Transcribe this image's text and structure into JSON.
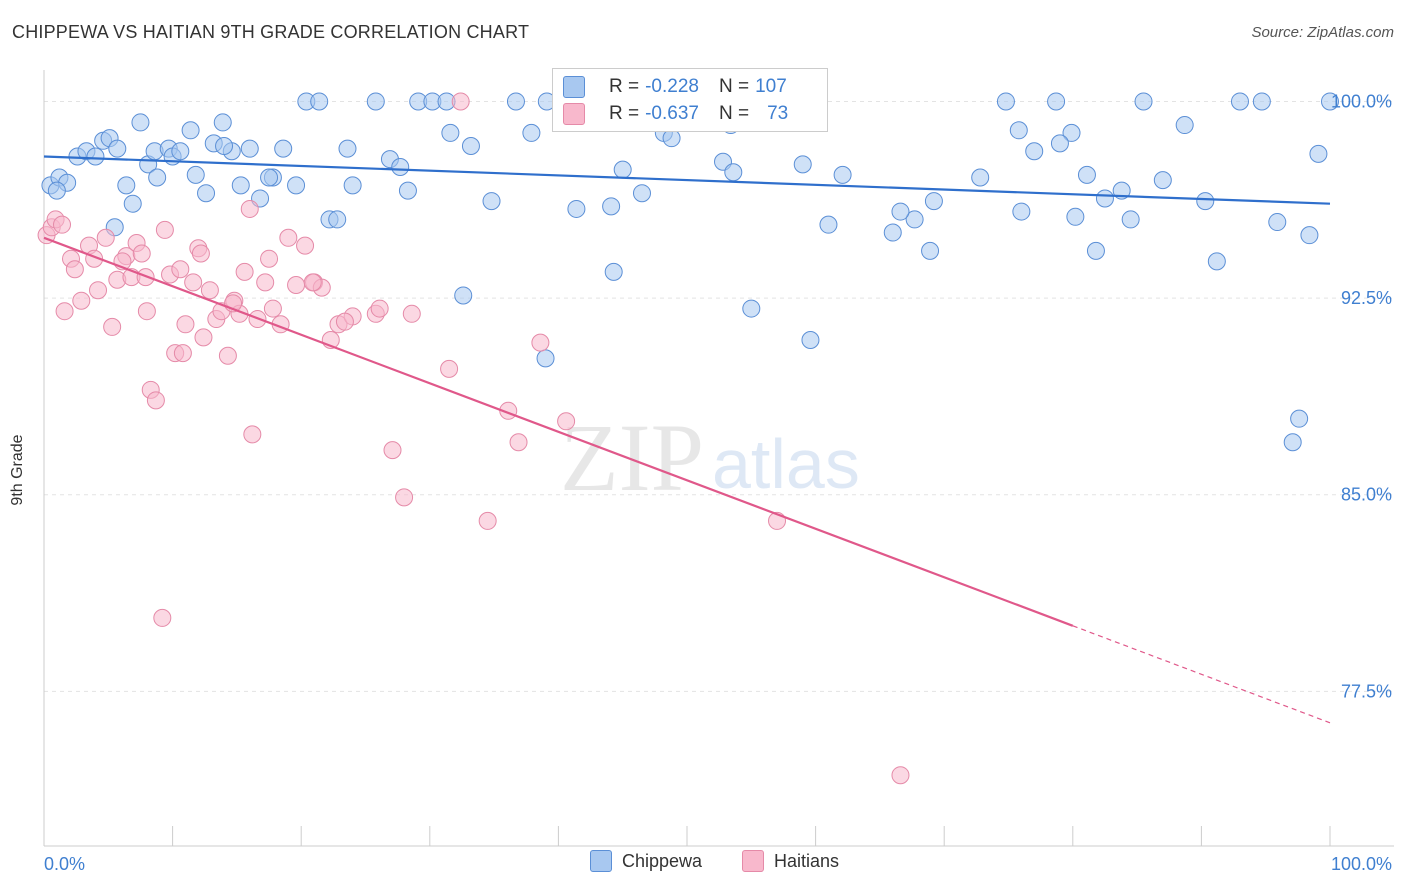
{
  "title": "CHIPPEWA VS HAITIAN 9TH GRADE CORRELATION CHART",
  "source": "Source: ZipAtlas.com",
  "watermark": {
    "zip": "ZIP",
    "atlas": "atlas"
  },
  "legend_stats": [
    {
      "r_label": "R = ",
      "r_value": "-0.228",
      "n_label": "N = ",
      "n_value": "107",
      "color": "#a8c8f0",
      "border": "#5b8fd6"
    },
    {
      "r_label": "R = ",
      "r_value": "-0.637",
      "n_label": "N = ",
      "n_value": "73",
      "color": "#f8b8cc",
      "border": "#e58aa8"
    }
  ],
  "legend_bottom": [
    {
      "label": "Chippewa",
      "color": "#a8c8f0",
      "border": "#5b8fd6"
    },
    {
      "label": "Haitians",
      "color": "#f8b8cc",
      "border": "#e58aa8"
    }
  ],
  "chart_data": {
    "type": "scatter",
    "title": "CHIPPEWA VS HAITIAN 9TH GRADE CORRELATION CHART",
    "xlabel": "",
    "ylabel": "9th Grade",
    "xlim": [
      0,
      100
    ],
    "ylim": [
      71.6,
      101.2
    ],
    "x_tick_labels": [
      "0.0%",
      "100.0%"
    ],
    "y_ticks": [
      100.0,
      92.5,
      85.0,
      77.5
    ],
    "y_tick_labels": [
      "100.0%",
      "92.5%",
      "85.0%",
      "77.5%"
    ],
    "grid": true,
    "series": [
      {
        "name": "Chippewa",
        "color": "#a8c8f0",
        "stroke": "#5b8fd6",
        "trend": {
          "x0": 0,
          "y0": 97.9,
          "x1": 100,
          "y1": 96.1,
          "color": "#2f6fcc"
        },
        "points": [
          [
            0.5,
            96.8
          ],
          [
            1.2,
            97.1
          ],
          [
            1.8,
            96.9
          ],
          [
            2.6,
            97.9
          ],
          [
            3.3,
            98.1
          ],
          [
            4.0,
            97.9
          ],
          [
            4.6,
            98.5
          ],
          [
            5.1,
            98.6
          ],
          [
            5.7,
            98.2
          ],
          [
            6.4,
            96.8
          ],
          [
            6.9,
            96.1
          ],
          [
            7.5,
            99.2
          ],
          [
            8.1,
            97.6
          ],
          [
            8.6,
            98.1
          ],
          [
            8.8,
            97.1
          ],
          [
            9.7,
            98.2
          ],
          [
            10.0,
            97.9
          ],
          [
            10.6,
            98.1
          ],
          [
            11.4,
            98.9
          ],
          [
            11.8,
            97.2
          ],
          [
            12.6,
            96.5
          ],
          [
            13.2,
            98.4
          ],
          [
            13.9,
            99.2
          ],
          [
            14.6,
            98.1
          ],
          [
            15.3,
            96.8
          ],
          [
            16.0,
            98.2
          ],
          [
            16.8,
            96.3
          ],
          [
            17.8,
            97.1
          ],
          [
            18.6,
            98.2
          ],
          [
            19.6,
            96.8
          ],
          [
            20.4,
            100.0
          ],
          [
            21.4,
            100.0
          ],
          [
            22.2,
            95.5
          ],
          [
            22.8,
            95.5
          ],
          [
            23.6,
            98.2
          ],
          [
            24.0,
            96.8
          ],
          [
            25.8,
            100.0
          ],
          [
            26.9,
            97.8
          ],
          [
            27.7,
            97.5
          ],
          [
            28.3,
            96.6
          ],
          [
            29.1,
            100.0
          ],
          [
            30.2,
            100.0
          ],
          [
            31.3,
            100.0
          ],
          [
            31.6,
            98.8
          ],
          [
            32.6,
            92.6
          ],
          [
            33.2,
            98.3
          ],
          [
            34.8,
            96.2
          ],
          [
            36.7,
            100.0
          ],
          [
            37.9,
            98.8
          ],
          [
            39.1,
            100.0
          ],
          [
            41.4,
            95.9
          ],
          [
            44.1,
            96.0
          ],
          [
            44.3,
            93.5
          ],
          [
            45.0,
            97.4
          ],
          [
            46.0,
            100.0
          ],
          [
            47.1,
            99.2
          ],
          [
            48.2,
            98.8
          ],
          [
            48.8,
            98.6
          ],
          [
            50.0,
            100.0
          ],
          [
            52.8,
            97.7
          ],
          [
            53.6,
            97.3
          ],
          [
            56.0,
            100.0
          ],
          [
            57.8,
            100.0
          ],
          [
            59.0,
            97.6
          ],
          [
            61.0,
            95.3
          ],
          [
            62.1,
            97.2
          ],
          [
            66.0,
            95.0
          ],
          [
            67.7,
            95.5
          ],
          [
            68.9,
            94.3
          ],
          [
            69.2,
            96.2
          ],
          [
            72.8,
            97.1
          ],
          [
            74.8,
            100.0
          ],
          [
            75.8,
            98.9
          ],
          [
            76.0,
            95.8
          ],
          [
            77.0,
            98.1
          ],
          [
            78.7,
            100.0
          ],
          [
            79.9,
            98.8
          ],
          [
            80.2,
            95.6
          ],
          [
            81.1,
            97.2
          ],
          [
            81.8,
            94.3
          ],
          [
            82.5,
            96.3
          ],
          [
            83.8,
            96.6
          ],
          [
            84.5,
            95.5
          ],
          [
            85.5,
            100.0
          ],
          [
            87.0,
            97.0
          ],
          [
            88.7,
            99.1
          ],
          [
            90.3,
            96.2
          ],
          [
            91.2,
            93.9
          ],
          [
            93.0,
            100.0
          ],
          [
            94.7,
            100.0
          ],
          [
            95.9,
            95.4
          ],
          [
            97.1,
            87.0
          ],
          [
            97.6,
            87.9
          ],
          [
            98.4,
            94.9
          ],
          [
            99.1,
            98.0
          ],
          [
            100.0,
            100.0
          ],
          [
            5.5,
            95.2
          ],
          [
            17.5,
            97.1
          ],
          [
            39.0,
            90.2
          ],
          [
            46.5,
            96.5
          ],
          [
            53.4,
            99.1
          ],
          [
            14.0,
            98.3
          ],
          [
            66.6,
            95.8
          ],
          [
            79.0,
            98.4
          ],
          [
            1.0,
            96.6
          ],
          [
            55.0,
            92.1
          ],
          [
            59.6,
            90.9
          ]
        ]
      },
      {
        "name": "Haitians",
        "color": "#f8b8cc",
        "stroke": "#e58aa8",
        "trend": {
          "x0": 0,
          "y0": 94.8,
          "x1": 80,
          "y1": 80.0,
          "dashed_to_x": 100,
          "dashed_to_y": 76.3,
          "color": "#e0588a"
        },
        "points": [
          [
            0.2,
            94.9
          ],
          [
            0.6,
            95.2
          ],
          [
            0.9,
            95.5
          ],
          [
            1.6,
            92.0
          ],
          [
            2.1,
            94.0
          ],
          [
            2.4,
            93.6
          ],
          [
            2.9,
            92.4
          ],
          [
            3.5,
            94.5
          ],
          [
            4.2,
            92.8
          ],
          [
            4.8,
            94.8
          ],
          [
            5.3,
            91.4
          ],
          [
            5.7,
            93.2
          ],
          [
            6.4,
            94.1
          ],
          [
            6.8,
            93.3
          ],
          [
            7.2,
            94.6
          ],
          [
            7.6,
            94.2
          ],
          [
            8.0,
            92.0
          ],
          [
            8.3,
            89.0
          ],
          [
            8.7,
            88.6
          ],
          [
            9.4,
            95.1
          ],
          [
            9.8,
            93.4
          ],
          [
            10.2,
            90.4
          ],
          [
            10.6,
            93.6
          ],
          [
            11.0,
            91.5
          ],
          [
            11.6,
            93.1
          ],
          [
            12.0,
            94.4
          ],
          [
            12.4,
            91.0
          ],
          [
            12.9,
            92.8
          ],
          [
            13.4,
            91.7
          ],
          [
            13.8,
            92.0
          ],
          [
            14.3,
            90.3
          ],
          [
            14.8,
            92.4
          ],
          [
            15.2,
            91.9
          ],
          [
            15.6,
            93.5
          ],
          [
            16.0,
            95.9
          ],
          [
            16.6,
            91.7
          ],
          [
            17.2,
            93.1
          ],
          [
            17.8,
            92.1
          ],
          [
            18.4,
            91.5
          ],
          [
            19.0,
            94.8
          ],
          [
            19.6,
            93.0
          ],
          [
            20.3,
            94.5
          ],
          [
            21.0,
            93.1
          ],
          [
            21.6,
            92.9
          ],
          [
            22.3,
            90.9
          ],
          [
            22.9,
            91.5
          ],
          [
            24.0,
            91.8
          ],
          [
            25.8,
            91.9
          ],
          [
            27.1,
            86.7
          ],
          [
            28.0,
            84.9
          ],
          [
            28.6,
            91.9
          ],
          [
            31.5,
            89.8
          ],
          [
            34.5,
            84.0
          ],
          [
            36.1,
            88.2
          ],
          [
            36.9,
            87.0
          ],
          [
            38.6,
            90.8
          ],
          [
            40.6,
            87.8
          ],
          [
            57.0,
            84.0
          ],
          [
            66.6,
            74.3
          ],
          [
            9.2,
            80.3
          ],
          [
            16.2,
            87.3
          ],
          [
            1.4,
            95.3
          ],
          [
            3.9,
            94.0
          ],
          [
            6.1,
            93.9
          ],
          [
            7.9,
            93.3
          ],
          [
            12.2,
            94.2
          ],
          [
            14.7,
            92.3
          ],
          [
            17.5,
            94.0
          ],
          [
            20.9,
            93.1
          ],
          [
            23.4,
            91.6
          ],
          [
            26.1,
            92.1
          ],
          [
            32.4,
            100.0
          ],
          [
            10.8,
            90.4
          ]
        ]
      }
    ]
  }
}
